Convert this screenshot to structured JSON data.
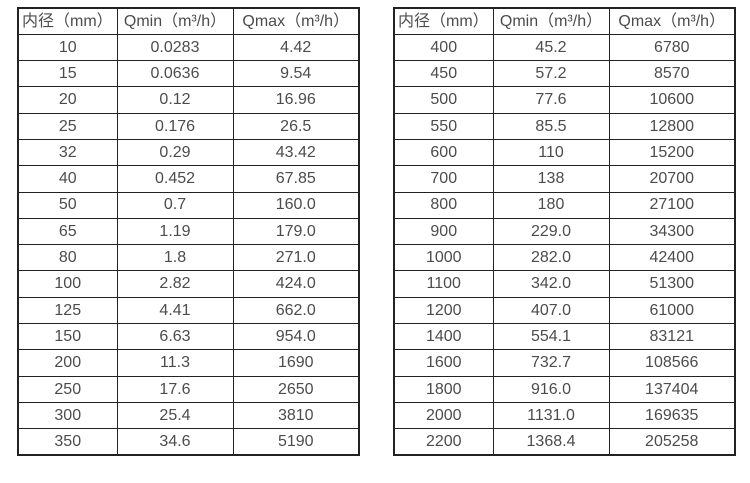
{
  "page": {
    "background": "#ffffff",
    "text_color": "#4c4c4c",
    "border_color": "#222222"
  },
  "tables": [
    {
      "name": "flow-spec-table-small-diameters",
      "headers": [
        "内径（mm）",
        "Qmin（m³/h）",
        "Qmax（m³/h）"
      ],
      "rows": [
        [
          "10",
          "0.0283",
          "4.42"
        ],
        [
          "15",
          "0.0636",
          "9.54"
        ],
        [
          "20",
          "0.12",
          "16.96"
        ],
        [
          "25",
          "0.176",
          "26.5"
        ],
        [
          "32",
          "0.29",
          "43.42"
        ],
        [
          "40",
          "0.452",
          "67.85"
        ],
        [
          "50",
          "0.7",
          "160.0"
        ],
        [
          "65",
          "1.19",
          "179.0"
        ],
        [
          "80",
          "1.8",
          "271.0"
        ],
        [
          "100",
          "2.82",
          "424.0"
        ],
        [
          "125",
          "4.41",
          "662.0"
        ],
        [
          "150",
          "6.63",
          "954.0"
        ],
        [
          "200",
          "11.3",
          "1690"
        ],
        [
          "250",
          "17.6",
          "2650"
        ],
        [
          "300",
          "25.4",
          "3810"
        ],
        [
          "350",
          "34.6",
          "5190"
        ]
      ]
    },
    {
      "name": "flow-spec-table-large-diameters",
      "headers": [
        "内径（mm）",
        "Qmin（m³/h）",
        "Qmax（m³/h）"
      ],
      "rows": [
        [
          "400",
          "45.2",
          "6780"
        ],
        [
          "450",
          "57.2",
          "8570"
        ],
        [
          "500",
          "77.6",
          "10600"
        ],
        [
          "550",
          "85.5",
          "12800"
        ],
        [
          "600",
          "110",
          "15200"
        ],
        [
          "700",
          "138",
          "20700"
        ],
        [
          "800",
          "180",
          "27100"
        ],
        [
          "900",
          "229.0",
          "34300"
        ],
        [
          "1000",
          "282.0",
          "42400"
        ],
        [
          "1100",
          "342.0",
          "51300"
        ],
        [
          "1200",
          "407.0",
          "61000"
        ],
        [
          "1400",
          "554.1",
          "83121"
        ],
        [
          "1600",
          "732.7",
          "108566"
        ],
        [
          "1800",
          "916.0",
          "137404"
        ],
        [
          "2000",
          "1131.0",
          "169635"
        ],
        [
          "2200",
          "1368.4",
          "205258"
        ]
      ]
    }
  ]
}
